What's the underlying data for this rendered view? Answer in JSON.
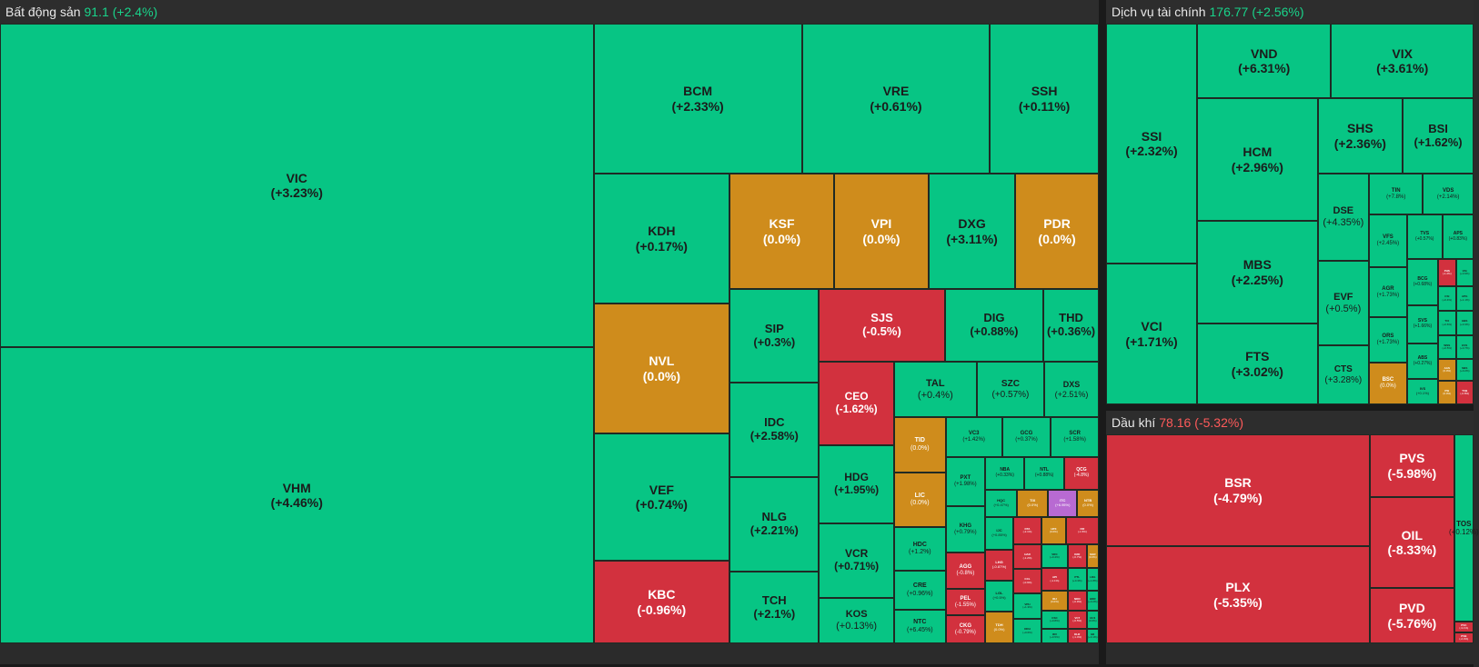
{
  "colors": {
    "up": "#07c584",
    "down": "#d2313e",
    "flat": "#cf8c1c",
    "ceil": "#b86ad2"
  },
  "sectors": {
    "bds": {
      "name": "Bất động sản",
      "value": "91.1",
      "change": "(+2.4%)",
      "trend": "up"
    },
    "dvtc": {
      "name": "Dịch vụ tài chính",
      "value": "176.77",
      "change": "(+2.56%)",
      "trend": "up"
    },
    "dk": {
      "name": "Dầu khí",
      "value": "78.16",
      "change": "(-5.32%)",
      "trend": "down"
    }
  },
  "tiles": [
    {
      "s": "VIC",
      "c": "(+3.23%)",
      "t": "up",
      "b": [
        0,
        26,
        632,
        356
      ],
      "f": 14
    },
    {
      "s": "VHM",
      "c": "(+4.46%)",
      "t": "up",
      "b": [
        0,
        382,
        632,
        326
      ],
      "f": 14
    },
    {
      "s": "BCM",
      "c": "(+2.33%)",
      "t": "up",
      "b": [
        632,
        26,
        222,
        165
      ],
      "f": 14
    },
    {
      "s": "VRE",
      "c": "(+0.61%)",
      "t": "up",
      "b": [
        854,
        26,
        200,
        165
      ],
      "f": 14
    },
    {
      "s": "SSH",
      "c": "(+0.11%)",
      "t": "up",
      "b": [
        1054,
        26,
        116,
        165
      ],
      "f": 14
    },
    {
      "s": "KDH",
      "c": "(+0.17%)",
      "t": "up",
      "b": [
        632,
        191,
        145,
        143
      ],
      "f": 14
    },
    {
      "s": "KSF",
      "c": "(0.0%)",
      "t": "flat",
      "b": [
        777,
        191,
        111,
        127
      ],
      "f": 14
    },
    {
      "s": "VPI",
      "c": "(0.0%)",
      "t": "flat",
      "b": [
        888,
        191,
        101,
        127
      ],
      "f": 14
    },
    {
      "s": "DXG",
      "c": "(+3.11%)",
      "t": "up",
      "b": [
        989,
        191,
        92,
        127
      ],
      "f": 14
    },
    {
      "s": "PDR",
      "c": "(0.0%)",
      "t": "flat",
      "b": [
        1081,
        191,
        89,
        127
      ],
      "f": 14
    },
    {
      "s": "NVL",
      "c": "(0.0%)",
      "t": "flat",
      "b": [
        632,
        334,
        145,
        143
      ],
      "f": 14
    },
    {
      "s": "VEF",
      "c": "(+0.74%)",
      "t": "up",
      "b": [
        632,
        477,
        145,
        140
      ],
      "f": 14
    },
    {
      "s": "KBC",
      "c": "(-0.96%)",
      "t": "down",
      "b": [
        632,
        617,
        145,
        91
      ],
      "f": 14
    },
    {
      "s": "SIP",
      "c": "(+0.3%)",
      "t": "up",
      "b": [
        777,
        318,
        95,
        103
      ],
      "f": 13
    },
    {
      "s": "IDC",
      "c": "(+2.58%)",
      "t": "up",
      "b": [
        777,
        421,
        95,
        104
      ],
      "f": 13
    },
    {
      "s": "NLG",
      "c": "(+2.21%)",
      "t": "up",
      "b": [
        777,
        525,
        95,
        104
      ],
      "f": 13
    },
    {
      "s": "TCH",
      "c": "(+2.1%)",
      "t": "up",
      "b": [
        777,
        629,
        95,
        79
      ],
      "f": 13
    },
    {
      "s": "SJS",
      "c": "(-0.5%)",
      "t": "down",
      "b": [
        872,
        318,
        134,
        80
      ],
      "f": 13
    },
    {
      "s": "DIG",
      "c": "(+0.88%)",
      "t": "up",
      "b": [
        1006,
        318,
        105,
        80
      ],
      "f": 13
    },
    {
      "s": "THD",
      "c": "(+0.36%)",
      "t": "up",
      "b": [
        1111,
        318,
        59,
        80
      ],
      "f": 13
    },
    {
      "s": "CEO",
      "c": "(-1.62%)",
      "t": "down",
      "b": [
        872,
        398,
        80,
        92
      ],
      "f": 12
    },
    {
      "s": "TAL",
      "c": "(+0.4%)",
      "t": "up",
      "b": [
        952,
        398,
        88,
        61
      ],
      "f": 11
    },
    {
      "s": "SZC",
      "c": "(+0.57%)",
      "t": "up",
      "b": [
        1040,
        398,
        72,
        61
      ],
      "f": 10
    },
    {
      "s": "DXS",
      "c": "(+2.51%)",
      "t": "up",
      "b": [
        1112,
        398,
        58,
        61
      ],
      "f": 9
    },
    {
      "s": "HDG",
      "c": "(+1.95%)",
      "t": "up",
      "b": [
        872,
        490,
        80,
        86
      ],
      "f": 12
    },
    {
      "s": "VCR",
      "c": "(+0.71%)",
      "t": "up",
      "b": [
        872,
        576,
        80,
        82
      ],
      "f": 12
    },
    {
      "s": "KOS",
      "c": "(+0.13%)",
      "t": "up",
      "b": [
        872,
        658,
        80,
        50
      ],
      "f": 11
    },
    {
      "s": "TID",
      "c": "(0.0%)",
      "t": "flat",
      "b": [
        952,
        459,
        55,
        61
      ],
      "f": 7
    },
    {
      "s": "LIC",
      "c": "(0.0%)",
      "t": "flat",
      "b": [
        952,
        520,
        55,
        60
      ],
      "f": 7
    },
    {
      "s": "HDC",
      "c": "(+1.2%)",
      "t": "up",
      "b": [
        952,
        580,
        55,
        48
      ],
      "f": 7
    },
    {
      "s": "CRE",
      "c": "(+0.96%)",
      "t": "up",
      "b": [
        952,
        628,
        55,
        43
      ],
      "f": 7
    },
    {
      "s": "NTC",
      "c": "(+6.45%)",
      "t": "up",
      "b": [
        952,
        671,
        55,
        37
      ],
      "f": 7
    },
    {
      "s": "VC3",
      "c": "(+1.42%)",
      "t": "up",
      "b": [
        1007,
        459,
        60,
        44
      ],
      "f": 6
    },
    {
      "s": "GCG",
      "c": "(+0.37%)",
      "t": "up",
      "b": [
        1067,
        459,
        52,
        44
      ],
      "f": 6
    },
    {
      "s": "SCR",
      "c": "(+1.58%)",
      "t": "up",
      "b": [
        1119,
        459,
        51,
        44
      ],
      "f": 6
    },
    {
      "s": "PXT",
      "c": "(+1.98%)",
      "t": "up",
      "b": [
        1007,
        503,
        42,
        54
      ],
      "f": 6
    },
    {
      "s": "NBA",
      "c": "(+0.33%)",
      "t": "up",
      "b": [
        1049,
        503,
        42,
        36
      ],
      "f": 5
    },
    {
      "s": "NTL",
      "c": "(+0.88%)",
      "t": "up",
      "b": [
        1091,
        503,
        42,
        36
      ],
      "f": 5
    },
    {
      "s": "QCG",
      "c": "(-4.8%)",
      "t": "down",
      "b": [
        1133,
        503,
        37,
        36
      ],
      "f": 5
    },
    {
      "s": "KHG",
      "c": "(+0.79%)",
      "t": "up",
      "b": [
        1007,
        557,
        42,
        51
      ],
      "f": 6
    },
    {
      "s": "AGG",
      "c": "(-0.8%)",
      "t": "down",
      "b": [
        1007,
        608,
        42,
        40
      ],
      "f": 6
    },
    {
      "s": "PEL",
      "c": "(-1.55%)",
      "t": "down",
      "b": [
        1007,
        648,
        42,
        29
      ],
      "f": 6
    },
    {
      "s": "CKG",
      "c": "(-0.79%)",
      "t": "down",
      "b": [
        1007,
        677,
        42,
        31
      ],
      "f": 6
    },
    {
      "s": "HQC",
      "c": "(+0.47%)",
      "t": "up",
      "b": [
        1049,
        539,
        34,
        30
      ],
      "f": 4
    },
    {
      "s": "TIX",
      "c": "(0.0%)",
      "t": "flat",
      "b": [
        1083,
        539,
        33,
        30
      ],
      "f": 4
    },
    {
      "s": "ITC",
      "c": "(+6.95%)",
      "t": "ceil",
      "b": [
        1116,
        539,
        31,
        30
      ],
      "f": 4
    },
    {
      "s": "NTB",
      "c": "(0.0%)",
      "t": "flat",
      "b": [
        1147,
        539,
        23,
        30
      ],
      "f": 4
    },
    {
      "s": "IJC",
      "c": "(+0.85%)",
      "t": "up",
      "b": [
        1049,
        569,
        30,
        36
      ],
      "f": 4
    },
    {
      "s": "LHG",
      "c": "(-0.87%)",
      "t": "down",
      "b": [
        1049,
        605,
        30,
        34
      ],
      "f": 4
    },
    {
      "s": "LGL",
      "c": "(+0.5%)",
      "t": "up",
      "b": [
        1049,
        639,
        30,
        34
      ],
      "f": 4
    },
    {
      "s": "TDH",
      "c": "(0.0%)",
      "t": "flat",
      "b": [
        1049,
        673,
        30,
        35
      ],
      "f": 4
    },
    {
      "s": "DTA",
      "c": "(-2.1%)",
      "t": "down",
      "b": [
        1079,
        569,
        30,
        30
      ],
      "f": 3
    },
    {
      "s": "HAR",
      "c": "(-1.2%)",
      "t": "down",
      "b": [
        1079,
        599,
        30,
        27
      ],
      "f": 3
    },
    {
      "s": "CCL",
      "c": "(-0.9%)",
      "t": "down",
      "b": [
        1079,
        626,
        30,
        27
      ],
      "f": 3
    },
    {
      "s": "VPH",
      "c": "(+1.3%)",
      "t": "up",
      "b": [
        1079,
        653,
        30,
        28
      ],
      "f": 3
    },
    {
      "s": "DRH",
      "c": "(+0.6%)",
      "t": "up",
      "b": [
        1079,
        681,
        30,
        27
      ],
      "f": 3
    },
    {
      "s": "HPX",
      "c": "(0.0%)",
      "t": "flat",
      "b": [
        1109,
        569,
        26,
        30
      ],
      "f": 3
    },
    {
      "s": "FIR",
      "c": "(-1.5%)",
      "t": "down",
      "b": [
        1135,
        569,
        35,
        30
      ],
      "f": 3
    },
    {
      "s": "VRC",
      "c": "(+0.4%)",
      "t": "up",
      "b": [
        1109,
        599,
        28,
        26
      ],
      "f": 3
    },
    {
      "s": "D2D",
      "c": "(-0.7%)",
      "t": "down",
      "b": [
        1137,
        599,
        20,
        26
      ],
      "f": 3
    },
    {
      "s": "SGR",
      "c": "(0.0%)",
      "t": "flat",
      "b": [
        1157,
        599,
        13,
        26
      ],
      "f": 3
    },
    {
      "s": "API",
      "c": "(-1.1%)",
      "t": "down",
      "b": [
        1109,
        625,
        28,
        25
      ],
      "f": 3
    },
    {
      "s": "PTL",
      "c": "(+0.3%)",
      "t": "up",
      "b": [
        1137,
        625,
        20,
        25
      ],
      "f": 3
    },
    {
      "s": "LDG",
      "c": "(+1.8%)",
      "t": "up",
      "b": [
        1157,
        625,
        13,
        25
      ],
      "f": 3
    },
    {
      "s": "IDJ",
      "c": "(0.0%)",
      "t": "flat",
      "b": [
        1109,
        650,
        28,
        22
      ],
      "f": 3
    },
    {
      "s": "NDN",
      "c": "(-0.9%)",
      "t": "down",
      "b": [
        1137,
        650,
        20,
        22
      ],
      "f": 3
    },
    {
      "s": "HDR",
      "c": "(+0.2%)",
      "t": "up",
      "b": [
        1157,
        650,
        13,
        22
      ],
      "f": 3
    },
    {
      "s": "CSC",
      "c": "(+0.8%)",
      "t": "up",
      "b": [
        1109,
        672,
        28,
        20
      ],
      "f": 3
    },
    {
      "s": "VC7",
      "c": "(-0.5%)",
      "t": "down",
      "b": [
        1137,
        672,
        20,
        20
      ],
      "f": 3
    },
    {
      "s": "HU1",
      "c": "(0.0%)",
      "t": "up",
      "b": [
        1157,
        672,
        13,
        20
      ],
      "f": 3
    },
    {
      "s": "IDV",
      "c": "(+0.5%)",
      "t": "up",
      "b": [
        1109,
        692,
        28,
        16
      ],
      "f": 3
    },
    {
      "s": "DLR",
      "c": "(-1.4%)",
      "t": "down",
      "b": [
        1137,
        692,
        20,
        16
      ],
      "f": 3
    },
    {
      "s": "BII",
      "c": "(+0.1%)",
      "t": "up",
      "b": [
        1157,
        692,
        13,
        16
      ],
      "f": 3
    },
    {
      "s": "SSI",
      "c": "(+2.32%)",
      "t": "up",
      "b": [
        1178,
        26,
        108,
        264
      ],
      "f": 14
    },
    {
      "s": "VCI",
      "c": "(+1.71%)",
      "t": "up",
      "b": [
        1178,
        290,
        108,
        155
      ],
      "f": 14
    },
    {
      "s": "VND",
      "c": "(+6.31%)",
      "t": "up",
      "b": [
        1286,
        26,
        159,
        82
      ],
      "f": 14
    },
    {
      "s": "VIX",
      "c": "(+3.61%)",
      "t": "up",
      "b": [
        1445,
        26,
        169,
        82
      ],
      "f": 14
    },
    {
      "s": "HCM",
      "c": "(+2.96%)",
      "t": "up",
      "b": [
        1286,
        108,
        143,
        135
      ],
      "f": 14
    },
    {
      "s": "MBS",
      "c": "(+2.25%)",
      "t": "up",
      "b": [
        1286,
        243,
        143,
        113
      ],
      "f": 14
    },
    {
      "s": "FTS",
      "c": "(+3.02%)",
      "t": "up",
      "b": [
        1286,
        356,
        143,
        89
      ],
      "f": 14
    },
    {
      "s": "SHS",
      "c": "(+2.36%)",
      "t": "up",
      "b": [
        1429,
        108,
        101,
        83
      ],
      "f": 14
    },
    {
      "s": "BSI",
      "c": "(+1.62%)",
      "t": "up",
      "b": [
        1530,
        108,
        84,
        83
      ],
      "f": 13
    },
    {
      "s": "DSE",
      "c": "(+4.35%)",
      "t": "up",
      "b": [
        1429,
        191,
        61,
        96
      ],
      "f": 11
    },
    {
      "s": "EVF",
      "c": "(+0.5%)",
      "t": "up",
      "b": [
        1429,
        287,
        61,
        93
      ],
      "f": 11
    },
    {
      "s": "CTS",
      "c": "(+3.28%)",
      "t": "up",
      "b": [
        1429,
        380,
        61,
        65
      ],
      "f": 10
    },
    {
      "s": "TIN",
      "c": "(+7.8%)",
      "t": "up",
      "b": [
        1490,
        191,
        64,
        45
      ],
      "f": 6
    },
    {
      "s": "VDS",
      "c": "(+2.14%)",
      "t": "up",
      "b": [
        1554,
        191,
        60,
        45
      ],
      "f": 6
    },
    {
      "s": "VFS",
      "c": "(+2.45%)",
      "t": "up",
      "b": [
        1490,
        236,
        45,
        58
      ],
      "f": 6
    },
    {
      "s": "AGR",
      "c": "(+1.73%)",
      "t": "up",
      "b": [
        1490,
        294,
        45,
        55
      ],
      "f": 6
    },
    {
      "s": "ORS",
      "c": "(+1.73%)",
      "t": "up",
      "b": [
        1490,
        349,
        45,
        50
      ],
      "f": 6
    },
    {
      "s": "BSC",
      "c": "(0.0%)",
      "t": "flat",
      "b": [
        1490,
        399,
        45,
        46
      ],
      "f": 6
    },
    {
      "s": "TVS",
      "c": "(+0.57%)",
      "t": "up",
      "b": [
        1535,
        236,
        42,
        49
      ],
      "f": 5
    },
    {
      "s": "APS",
      "c": "(+0.83%)",
      "t": "up",
      "b": [
        1577,
        236,
        37,
        49
      ],
      "f": 5
    },
    {
      "s": "BCG",
      "c": "(+0.68%)",
      "t": "up",
      "b": [
        1535,
        285,
        37,
        51
      ],
      "f": 5
    },
    {
      "s": "SVS",
      "c": "(+1.66%)",
      "t": "up",
      "b": [
        1535,
        336,
        37,
        42
      ],
      "f": 5
    },
    {
      "s": "ABS",
      "c": "(+0.27%)",
      "t": "up",
      "b": [
        1535,
        378,
        37,
        39
      ],
      "f": 5
    },
    {
      "s": "IVS",
      "c": "(+0.1%)",
      "t": "up",
      "b": [
        1535,
        417,
        37,
        28
      ],
      "f": 4
    },
    {
      "s": "PHS",
      "c": "(-1.2%)",
      "t": "down",
      "b": [
        1572,
        285,
        21,
        30
      ],
      "f": 3
    },
    {
      "s": "VIG",
      "c": "(+0.9%)",
      "t": "up",
      "b": [
        1593,
        285,
        21,
        30
      ],
      "f": 3
    },
    {
      "s": "CSI",
      "c": "(+0.4%)",
      "t": "up",
      "b": [
        1572,
        315,
        21,
        27
      ],
      "f": 3
    },
    {
      "s": "APG",
      "c": "(+1.1%)",
      "t": "up",
      "b": [
        1593,
        315,
        21,
        27
      ],
      "f": 3
    },
    {
      "s": "TCI",
      "c": "(+0.6%)",
      "t": "up",
      "b": [
        1572,
        342,
        21,
        27
      ],
      "f": 3
    },
    {
      "s": "HBS",
      "c": "(+0.3%)",
      "t": "up",
      "b": [
        1593,
        342,
        21,
        27
      ],
      "f": 3
    },
    {
      "s": "WSS",
      "c": "(+0.5%)",
      "t": "up",
      "b": [
        1572,
        369,
        21,
        26
      ],
      "f": 3
    },
    {
      "s": "EVS",
      "c": "(+0.7%)",
      "t": "up",
      "b": [
        1593,
        369,
        21,
        26
      ],
      "f": 3
    },
    {
      "s": "AAS",
      "c": "(0.0%)",
      "t": "flat",
      "b": [
        1572,
        395,
        21,
        24
      ],
      "f": 3
    },
    {
      "s": "SBS",
      "c": "(+0.2%)",
      "t": "up",
      "b": [
        1593,
        395,
        21,
        24
      ],
      "f": 3
    },
    {
      "s": "PSI",
      "c": "(0.0%)",
      "t": "flat",
      "b": [
        1572,
        419,
        21,
        26
      ],
      "f": 3
    },
    {
      "s": "TVB",
      "c": "(-0.8%)",
      "t": "down",
      "b": [
        1593,
        419,
        21,
        26
      ],
      "f": 3
    },
    {
      "s": "BSR",
      "c": "(-4.79%)",
      "t": "down",
      "b": [
        1178,
        478,
        313,
        123
      ],
      "f": 14
    },
    {
      "s": "PLX",
      "c": "(-5.35%)",
      "t": "down",
      "b": [
        1178,
        601,
        313,
        107
      ],
      "f": 14
    },
    {
      "s": "PVS",
      "c": "(-5.98%)",
      "t": "down",
      "b": [
        1491,
        478,
        100,
        69
      ],
      "f": 14
    },
    {
      "s": "OIL",
      "c": "(-8.33%)",
      "t": "down",
      "b": [
        1491,
        547,
        100,
        100
      ],
      "f": 14
    },
    {
      "s": "PVD",
      "c": "(-5.76%)",
      "t": "down",
      "b": [
        1491,
        647,
        100,
        61
      ],
      "f": 14
    },
    {
      "s": "TOS",
      "c": "(+0.12%)",
      "t": "up",
      "b": [
        1591,
        478,
        23,
        206
      ],
      "f": 8
    },
    {
      "s": "PVC",
      "c": "(-3.1%)",
      "t": "down",
      "b": [
        1591,
        684,
        23,
        12
      ],
      "f": 3
    },
    {
      "s": "PVB",
      "c": "(-2.4%)",
      "t": "down",
      "b": [
        1591,
        696,
        23,
        12
      ],
      "f": 3
    }
  ]
}
